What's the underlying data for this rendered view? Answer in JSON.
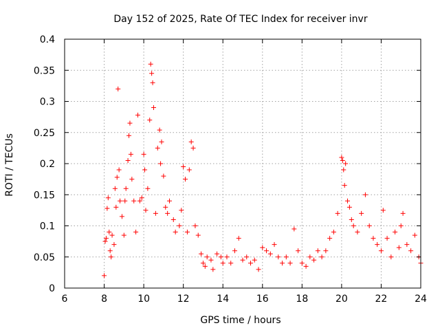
{
  "chart_data": {
    "type": "scatter",
    "title": "Day 152 of 2025, Rate Of TEC Index for receiver invr",
    "xlabel": "GPS time / hours",
    "ylabel": "ROTI / TECUs",
    "xlim": [
      6,
      24
    ],
    "ylim": [
      0,
      0.4
    ],
    "x_ticks": [
      6,
      8,
      10,
      12,
      14,
      16,
      18,
      20,
      22,
      24
    ],
    "x_tick_labels": [
      "6",
      "8",
      "10",
      "12",
      "14",
      "16",
      "18",
      "20",
      "22",
      "24"
    ],
    "y_ticks": [
      0,
      0.05,
      0.1,
      0.15,
      0.2,
      0.25,
      0.3,
      0.35,
      0.4
    ],
    "y_tick_labels": [
      "0",
      "0.05",
      "0.1",
      "0.15",
      "0.2",
      "0.25",
      "0.3",
      "0.35",
      "0.4"
    ],
    "grid": true,
    "marker": "+",
    "color": "#ff0000",
    "series": [
      {
        "name": "ROTI",
        "points": [
          [
            8.0,
            0.02
          ],
          [
            8.05,
            0.075
          ],
          [
            8.1,
            0.08
          ],
          [
            8.15,
            0.128
          ],
          [
            8.2,
            0.145
          ],
          [
            8.25,
            0.09
          ],
          [
            8.3,
            0.06
          ],
          [
            8.35,
            0.05
          ],
          [
            8.4,
            0.085
          ],
          [
            8.5,
            0.07
          ],
          [
            8.55,
            0.16
          ],
          [
            8.6,
            0.13
          ],
          [
            8.65,
            0.178
          ],
          [
            8.7,
            0.32
          ],
          [
            8.75,
            0.19
          ],
          [
            8.8,
            0.14
          ],
          [
            8.9,
            0.115
          ],
          [
            9.0,
            0.085
          ],
          [
            9.05,
            0.14
          ],
          [
            9.1,
            0.16
          ],
          [
            9.2,
            0.205
          ],
          [
            9.25,
            0.245
          ],
          [
            9.3,
            0.265
          ],
          [
            9.35,
            0.215
          ],
          [
            9.4,
            0.175
          ],
          [
            9.5,
            0.14
          ],
          [
            9.6,
            0.09
          ],
          [
            9.7,
            0.278
          ],
          [
            9.8,
            0.14
          ],
          [
            9.9,
            0.145
          ],
          [
            10.0,
            0.215
          ],
          [
            10.05,
            0.19
          ],
          [
            10.1,
            0.125
          ],
          [
            10.2,
            0.16
          ],
          [
            10.3,
            0.27
          ],
          [
            10.35,
            0.36
          ],
          [
            10.4,
            0.345
          ],
          [
            10.45,
            0.33
          ],
          [
            10.5,
            0.29
          ],
          [
            10.6,
            0.12
          ],
          [
            10.7,
            0.225
          ],
          [
            10.8,
            0.254
          ],
          [
            10.85,
            0.2
          ],
          [
            10.9,
            0.235
          ],
          [
            11.0,
            0.18
          ],
          [
            11.1,
            0.13
          ],
          [
            11.2,
            0.12
          ],
          [
            11.3,
            0.14
          ],
          [
            11.5,
            0.11
          ],
          [
            11.6,
            0.09
          ],
          [
            11.8,
            0.1
          ],
          [
            11.9,
            0.125
          ],
          [
            12.0,
            0.195
          ],
          [
            12.1,
            0.175
          ],
          [
            12.2,
            0.09
          ],
          [
            12.3,
            0.19
          ],
          [
            12.4,
            0.235
          ],
          [
            12.5,
            0.225
          ],
          [
            12.6,
            0.1
          ],
          [
            12.75,
            0.085
          ],
          [
            12.9,
            0.055
          ],
          [
            13.0,
            0.04
          ],
          [
            13.1,
            0.035
          ],
          [
            13.2,
            0.05
          ],
          [
            13.4,
            0.045
          ],
          [
            13.5,
            0.03
          ],
          [
            13.7,
            0.055
          ],
          [
            13.9,
            0.05
          ],
          [
            14.0,
            0.04
          ],
          [
            14.2,
            0.05
          ],
          [
            14.4,
            0.04
          ],
          [
            14.6,
            0.06
          ],
          [
            14.8,
            0.08
          ],
          [
            15.0,
            0.045
          ],
          [
            15.2,
            0.05
          ],
          [
            15.4,
            0.04
          ],
          [
            15.6,
            0.045
          ],
          [
            15.8,
            0.03
          ],
          [
            16.0,
            0.065
          ],
          [
            16.2,
            0.06
          ],
          [
            16.4,
            0.055
          ],
          [
            16.6,
            0.07
          ],
          [
            16.8,
            0.05
          ],
          [
            17.0,
            0.04
          ],
          [
            17.2,
            0.05
          ],
          [
            17.4,
            0.04
          ],
          [
            17.6,
            0.095
          ],
          [
            17.8,
            0.06
          ],
          [
            18.0,
            0.04
          ],
          [
            18.2,
            0.035
          ],
          [
            18.4,
            0.05
          ],
          [
            18.6,
            0.045
          ],
          [
            18.8,
            0.06
          ],
          [
            19.0,
            0.05
          ],
          [
            19.2,
            0.06
          ],
          [
            19.4,
            0.08
          ],
          [
            19.6,
            0.09
          ],
          [
            19.8,
            0.12
          ],
          [
            20.0,
            0.21
          ],
          [
            20.05,
            0.205
          ],
          [
            20.1,
            0.19
          ],
          [
            20.15,
            0.165
          ],
          [
            20.2,
            0.2
          ],
          [
            20.3,
            0.14
          ],
          [
            20.4,
            0.13
          ],
          [
            20.5,
            0.11
          ],
          [
            20.6,
            0.1
          ],
          [
            20.8,
            0.09
          ],
          [
            21.0,
            0.12
          ],
          [
            21.2,
            0.15
          ],
          [
            21.4,
            0.1
          ],
          [
            21.6,
            0.08
          ],
          [
            21.8,
            0.07
          ],
          [
            22.0,
            0.06
          ],
          [
            22.1,
            0.125
          ],
          [
            22.3,
            0.08
          ],
          [
            22.5,
            0.05
          ],
          [
            22.7,
            0.09
          ],
          [
            22.9,
            0.065
          ],
          [
            23.0,
            0.1
          ],
          [
            23.1,
            0.12
          ],
          [
            23.3,
            0.07
          ],
          [
            23.5,
            0.06
          ],
          [
            23.7,
            0.085
          ],
          [
            23.9,
            0.05
          ],
          [
            24.0,
            0.04
          ]
        ]
      }
    ]
  }
}
